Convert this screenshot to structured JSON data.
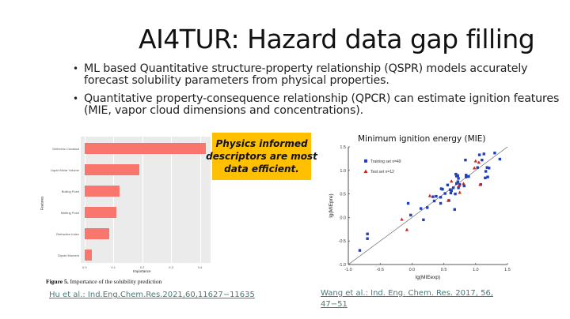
{
  "slide": {
    "title": "AI4TUR: Hazard data gap filling",
    "bullets": [
      "ML based Quantitative structure-property relationship (QSPR) models accurately forecast solubility parameters from physical properties.",
      "Quantitative property-consequence relationship (QPCR) can estimate ignition features (MIE, vapor cloud dimensions and concentrations)."
    ],
    "callout": {
      "line1": "Physics informed",
      "line2": "descriptors are most",
      "line3": "data efficient."
    },
    "left_figure": {
      "caption_label": "Figure 5.",
      "caption_text": "Importance of the solubility prediction",
      "reference": "Hu et al.: Ind.Eng.Chem.Res.2021,60,11627−11635"
    },
    "right_figure": {
      "reference": "Wang et al.: Ind. Eng. Chem. Res. 2017, 56, 47−51"
    }
  },
  "chart_data": [
    {
      "type": "bar",
      "orientation": "horizontal",
      "title": "",
      "xlabel": "Importance",
      "ylabel": "Features",
      "categories": [
        "Dielectric Constant",
        "Liquid Molar Volume",
        "Boiling Point",
        "Melting Point",
        "Refractive Index",
        "Dipole Moment"
      ],
      "values": [
        0.42,
        0.19,
        0.12,
        0.11,
        0.085,
        0.025
      ],
      "xticks": [
        "0.0",
        "0.1",
        "0.2",
        "0.3",
        "0.4"
      ],
      "xlim": [
        0,
        0.44
      ],
      "bar_color": "#f8766d",
      "grid": true,
      "background": "#ebebeb"
    },
    {
      "type": "scatter",
      "title": "Minimum ignition energy (MIE)",
      "xlabel": "lg(MIEexp)",
      "ylabel": "lg(MIEpre)",
      "xlim": [
        -1.0,
        1.5
      ],
      "ylim": [
        -1.0,
        1.5
      ],
      "xticks": [
        "-1.0",
        "-0.5",
        "0.0",
        "0.5",
        "1.0",
        "1.5"
      ],
      "yticks": [
        "-1.0",
        "-0.5",
        "0.0",
        "0.5",
        "1.0",
        "1.5"
      ],
      "reference_line": "y = x",
      "legend": [
        {
          "label": "Training set",
          "n": "n=49",
          "marker": "square",
          "color": "#1f3fbf"
        },
        {
          "label": "Test set",
          "n": "n=12",
          "marker": "triangle",
          "color": "#cc2222"
        }
      ],
      "series": [
        {
          "name": "Training set",
          "points": [
            [
              -0.82,
              -0.7
            ],
            [
              -0.7,
              -0.35
            ],
            [
              -0.7,
              -0.45
            ],
            [
              -0.06,
              0.3
            ],
            [
              -0.02,
              0.05
            ],
            [
              0.14,
              0.19
            ],
            [
              0.18,
              -0.05
            ],
            [
              0.24,
              0.21
            ],
            [
              0.33,
              0.44
            ],
            [
              0.35,
              0.35
            ],
            [
              0.38,
              0.45
            ],
            [
              0.45,
              0.43
            ],
            [
              0.45,
              0.3
            ],
            [
              0.46,
              0.61
            ],
            [
              0.48,
              0.6
            ],
            [
              0.52,
              0.51
            ],
            [
              0.56,
              0.69
            ],
            [
              0.58,
              0.36
            ],
            [
              0.6,
              0.59
            ],
            [
              0.61,
              0.52
            ],
            [
              0.65,
              0.63
            ],
            [
              0.67,
              0.17
            ],
            [
              0.68,
              0.5
            ],
            [
              0.69,
              0.92
            ],
            [
              0.7,
              0.88
            ],
            [
              0.7,
              0.72
            ],
            [
              0.72,
              0.76
            ],
            [
              0.72,
              0.89
            ],
            [
              0.73,
              0.83
            ],
            [
              0.73,
              0.63
            ],
            [
              0.75,
              0.7
            ],
            [
              0.82,
              0.67
            ],
            [
              0.84,
              1.22
            ],
            [
              0.85,
              0.9
            ],
            [
              0.85,
              0.86
            ],
            [
              0.89,
              0.87
            ],
            [
              1.03,
              1.06
            ],
            [
              1.06,
              1.33
            ],
            [
              1.08,
              0.7
            ],
            [
              1.1,
              1.22
            ],
            [
              1.13,
              1.35
            ],
            [
              1.15,
              0.84
            ],
            [
              1.16,
              0.98
            ],
            [
              1.18,
              1.06
            ],
            [
              1.19,
              0.86
            ],
            [
              1.21,
              1.05
            ],
            [
              1.3,
              1.37
            ],
            [
              1.38,
              1.24
            ],
            [
              0.62,
              0.57
            ]
          ]
        },
        {
          "name": "Test set",
          "points": [
            [
              -0.16,
              -0.04
            ],
            [
              -0.08,
              -0.26
            ],
            [
              0.28,
              0.46
            ],
            [
              0.57,
              0.36
            ],
            [
              0.62,
              0.77
            ],
            [
              0.74,
              0.68
            ],
            [
              0.75,
              0.53
            ],
            [
              0.81,
              0.72
            ],
            [
              0.98,
              1.05
            ],
            [
              1.0,
              1.2
            ],
            [
              1.05,
              1.17
            ],
            [
              1.07,
              0.7
            ]
          ]
        }
      ]
    }
  ]
}
